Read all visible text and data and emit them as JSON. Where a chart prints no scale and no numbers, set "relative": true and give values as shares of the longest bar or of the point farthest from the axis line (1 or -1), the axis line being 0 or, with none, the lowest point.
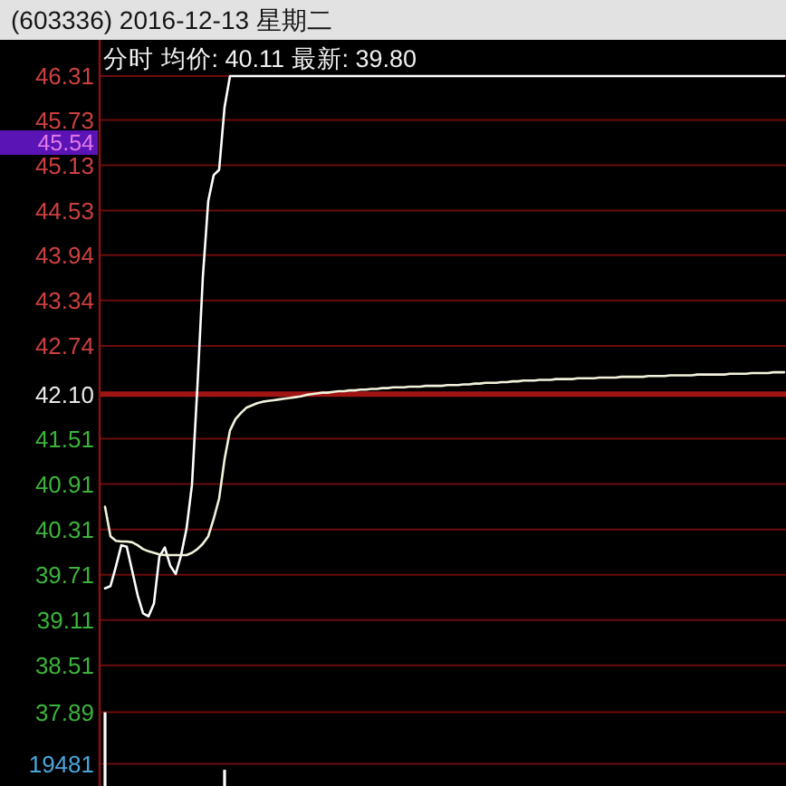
{
  "chart_data": [
    {
      "type": "line",
      "title": "(603336) 2016-12-13 星期二",
      "subtitle": "分时 均价: 40.11 最新: 39.80",
      "categories": [
        null,
        null,
        null,
        null,
        null,
        null,
        null,
        null,
        null,
        null,
        null,
        null,
        null,
        null,
        null,
        null,
        null,
        null,
        null,
        null,
        null,
        null,
        null,
        null,
        null,
        null,
        null,
        null,
        null,
        null,
        null,
        null,
        null,
        null,
        null,
        null,
        null,
        null,
        null,
        null,
        null,
        null,
        null,
        null,
        null,
        null,
        null,
        null,
        null,
        null,
        null,
        null,
        null,
        null,
        null,
        null,
        null,
        null,
        null,
        null,
        null,
        null,
        null,
        null,
        null,
        null,
        null,
        null,
        null,
        null,
        null,
        null,
        null,
        null,
        null,
        null,
        null,
        null,
        null,
        null,
        null,
        null,
        null,
        null,
        null,
        null,
        null,
        null,
        null,
        null,
        null,
        null,
        null,
        null,
        null,
        null,
        null,
        null,
        null,
        null,
        null,
        null,
        null,
        null,
        null,
        null,
        null,
        null,
        null,
        null,
        null,
        null,
        null,
        null,
        null,
        null,
        null,
        null,
        null,
        null,
        null,
        null,
        null,
        null,
        null,
        null
      ],
      "series": [
        {
          "color": "#ffffff",
          "values": [
            39.53,
            39.56,
            39.82,
            40.1,
            40.08,
            39.76,
            39.44,
            39.2,
            39.16,
            39.33,
            39.95,
            40.07,
            39.83,
            39.72,
            39.97,
            40.32,
            40.9,
            42.2,
            43.65,
            44.66,
            45.0,
            45.07,
            45.9,
            46.31,
            46.31,
            46.31,
            46.31,
            46.31,
            46.31,
            46.31,
            46.31,
            46.31,
            46.31,
            46.31,
            46.31,
            46.31,
            46.31,
            46.31,
            46.31,
            46.31,
            46.31,
            46.31,
            46.31,
            46.31,
            46.31,
            46.31,
            46.31,
            46.31,
            46.31,
            46.31,
            46.31,
            46.31,
            46.31,
            46.31,
            46.31,
            46.31,
            46.31,
            46.31,
            46.31,
            46.31,
            46.31,
            46.31,
            46.31,
            46.31,
            46.31,
            46.31,
            46.31,
            46.31,
            46.31,
            46.31,
            46.31,
            46.31,
            46.31,
            46.31,
            46.31,
            46.31,
            46.31,
            46.31,
            46.31,
            46.31,
            46.31,
            46.31,
            46.31,
            46.31,
            46.31,
            46.31,
            46.31,
            46.31,
            46.31,
            46.31,
            46.31,
            46.31,
            46.31,
            46.31,
            46.31,
            46.31,
            46.31,
            46.31,
            46.31,
            46.31,
            46.31,
            46.31,
            46.31,
            46.31,
            46.31,
            46.31,
            46.31,
            46.31,
            46.31,
            46.31,
            46.31,
            46.31,
            46.31,
            46.31,
            46.31,
            46.31,
            46.31,
            46.31,
            46.31,
            46.31,
            46.31,
            46.31,
            46.31,
            46.31,
            46.31,
            46.31
          ]
        },
        {
          "color": "#f2f2dc",
          "values": [
            40.61,
            40.22,
            40.16,
            40.15,
            40.15,
            40.14,
            40.1,
            40.05,
            40.02,
            40.0,
            39.98,
            39.97,
            39.97,
            39.97,
            39.97,
            39.97,
            40.0,
            40.05,
            40.12,
            40.22,
            40.45,
            40.72,
            41.24,
            41.62,
            41.77,
            41.85,
            41.92,
            41.95,
            41.98,
            42.0,
            42.01,
            42.02,
            42.03,
            42.04,
            42.05,
            42.06,
            42.07,
            42.09,
            42.1,
            42.11,
            42.12,
            42.12,
            42.13,
            42.14,
            42.14,
            42.15,
            42.15,
            42.16,
            42.16,
            42.17,
            42.17,
            42.18,
            42.18,
            42.19,
            42.19,
            42.19,
            42.2,
            42.2,
            42.2,
            42.21,
            42.21,
            42.21,
            42.21,
            42.22,
            42.22,
            42.22,
            42.23,
            42.23,
            42.24,
            42.24,
            42.25,
            42.25,
            42.25,
            42.26,
            42.26,
            42.27,
            42.27,
            42.28,
            42.28,
            42.28,
            42.29,
            42.29,
            42.29,
            42.3,
            42.3,
            42.3,
            42.3,
            42.31,
            42.31,
            42.31,
            42.31,
            42.32,
            42.32,
            42.32,
            42.32,
            42.33,
            42.33,
            42.33,
            42.33,
            42.33,
            42.34,
            42.34,
            42.34,
            42.34,
            42.35,
            42.35,
            42.35,
            42.35,
            42.35,
            42.36,
            42.36,
            42.36,
            42.36,
            42.36,
            42.36,
            42.37,
            42.37,
            42.37,
            42.37,
            42.38,
            42.38,
            42.38,
            42.38,
            42.39,
            42.39,
            42.39
          ]
        }
      ],
      "ylim": [
        37.89,
        46.31
      ],
      "yticks": [
        37.89,
        38.51,
        39.11,
        39.71,
        40.31,
        40.91,
        41.51,
        {
          "value": 42.1,
          "label": "42.10"
        },
        42.74,
        43.34,
        43.94,
        44.53,
        45.13,
        45.73,
        46.31
      ],
      "grid": "y",
      "tick_labels": "y",
      "line_style": "solid",
      "ref_lines": [
        {
          "axis": "y",
          "value": 42.1,
          "color": "#a01414"
        }
      ],
      "annotations": [
        "45.54"
      ]
    },
    {
      "type": "bar",
      "relative": true,
      "color": "#ffffff",
      "categories": [
        null,
        null,
        null,
        null,
        null,
        null,
        null,
        null,
        null,
        null,
        null,
        null,
        null,
        null,
        null,
        null,
        null,
        null,
        null,
        null,
        null,
        null,
        null,
        null,
        null,
        null,
        null,
        null,
        null,
        null,
        null,
        null,
        null,
        null,
        null,
        null,
        null,
        null,
        null,
        null,
        null,
        null,
        null,
        null,
        null,
        null,
        null,
        null,
        null,
        null,
        null,
        null,
        null,
        null,
        null,
        null,
        null,
        null,
        null,
        null,
        null,
        null,
        null,
        null,
        null,
        null,
        null,
        null,
        null,
        null,
        null,
        null,
        null,
        null,
        null,
        null,
        null,
        null,
        null,
        null,
        null,
        null,
        null,
        null,
        null,
        null,
        null,
        null,
        null,
        null,
        null,
        null,
        null,
        null,
        null,
        null,
        null,
        null,
        null,
        null,
        null,
        null,
        null,
        null,
        null,
        null,
        null,
        null,
        null,
        null,
        null,
        null,
        null,
        null,
        null,
        null,
        null,
        null,
        null,
        null,
        null,
        null,
        null,
        null,
        null,
        null
      ],
      "values": [
        1,
        null,
        null,
        null,
        null,
        null,
        null,
        null,
        null,
        null,
        null,
        null,
        null,
        null,
        null,
        null,
        null,
        null,
        null,
        null,
        null,
        null,
        0.22,
        null,
        null,
        null,
        null,
        null,
        null,
        null,
        null,
        null,
        null,
        null,
        null,
        null,
        null,
        null,
        null,
        null,
        null,
        null,
        null,
        null,
        null,
        null,
        null,
        null,
        null,
        null,
        null,
        null,
        null,
        null,
        null,
        null,
        null,
        null,
        null,
        null,
        null,
        null,
        null,
        null,
        null,
        null,
        null,
        null,
        null,
        null,
        null,
        null,
        null,
        null,
        null,
        null,
        null,
        null,
        null,
        null,
        null,
        null,
        null,
        null,
        null,
        null,
        null,
        null,
        null,
        null,
        null,
        null,
        null,
        null,
        null,
        null,
        null,
        null,
        null,
        null,
        null,
        null,
        null,
        null,
        null,
        null,
        null,
        null,
        null,
        null,
        null,
        null,
        null,
        null,
        null,
        null,
        null,
        null,
        null,
        null,
        null,
        null,
        null,
        null,
        null,
        null
      ],
      "ref_lines": [
        {
          "axis": "y",
          "value": 0.3,
          "color": "#6b0c0c"
        }
      ],
      "annotations": [
        "19481"
      ]
    }
  ]
}
